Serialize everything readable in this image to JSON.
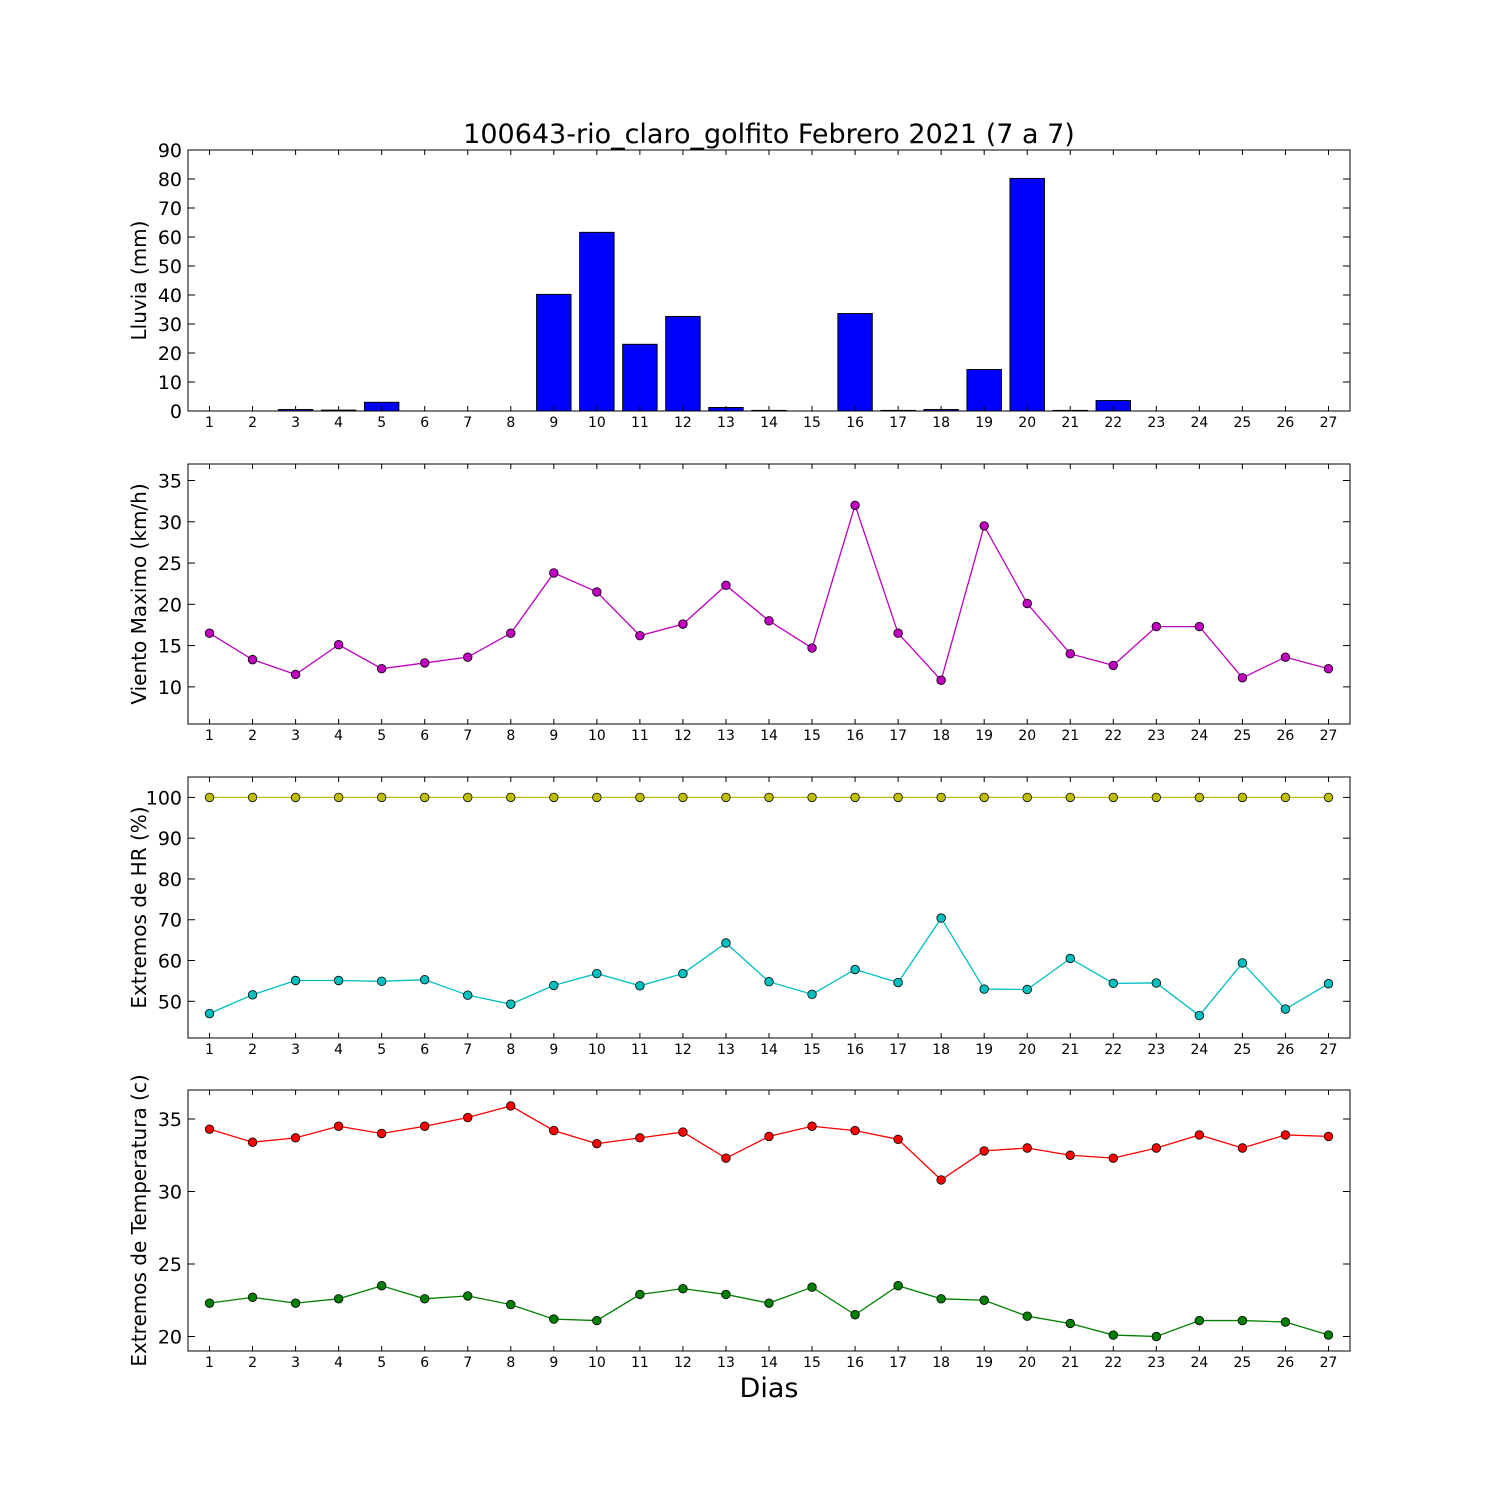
{
  "figure": {
    "title": "100643-rio_claro_golfito Febrero 2021  (7 a 7)",
    "xlabel": "Dias"
  },
  "chart_data": [
    {
      "type": "bar",
      "ylabel": "Lluvia (mm)",
      "x": [
        1,
        2,
        3,
        4,
        5,
        6,
        7,
        8,
        9,
        10,
        11,
        12,
        13,
        14,
        15,
        16,
        17,
        18,
        19,
        20,
        21,
        22,
        23,
        24,
        25,
        26,
        27
      ],
      "xlim": [
        0.5,
        27.5
      ],
      "ylim": [
        0,
        90
      ],
      "yticks": [
        0,
        10,
        20,
        30,
        40,
        50,
        60,
        70,
        80,
        90
      ],
      "series": [
        {
          "color": "#0000ff",
          "values": [
            0,
            0,
            0.5,
            0.3,
            3,
            0,
            0,
            0,
            40.2,
            61.6,
            23,
            32.6,
            1.2,
            0.2,
            0,
            33.6,
            0.2,
            0.5,
            14.3,
            80.2,
            0.2,
            3.6,
            0,
            0,
            0,
            0,
            0
          ]
        }
      ]
    },
    {
      "type": "line",
      "ylabel": "Viento Maximo (km/h)",
      "x": [
        1,
        2,
        3,
        4,
        5,
        6,
        7,
        8,
        9,
        10,
        11,
        12,
        13,
        14,
        15,
        16,
        17,
        18,
        19,
        20,
        21,
        22,
        23,
        24,
        25,
        26,
        27
      ],
      "xlim": [
        0.5,
        27.5
      ],
      "ylim": [
        5.5,
        37
      ],
      "yticks": [
        10,
        15,
        20,
        25,
        30,
        35
      ],
      "series": [
        {
          "color": "#bf00bf",
          "values": [
            16.5,
            13.3,
            11.5,
            15.1,
            12.2,
            12.9,
            13.6,
            16.5,
            23.8,
            21.5,
            16.2,
            17.6,
            22.3,
            18,
            14.7,
            32,
            16.5,
            10.8,
            29.5,
            20.1,
            14,
            12.6,
            17.3,
            17.3,
            11.1,
            13.6,
            12.2
          ]
        }
      ]
    },
    {
      "type": "line",
      "ylabel": "Extremos de HR (%)",
      "x": [
        1,
        2,
        3,
        4,
        5,
        6,
        7,
        8,
        9,
        10,
        11,
        12,
        13,
        14,
        15,
        16,
        17,
        18,
        19,
        20,
        21,
        22,
        23,
        24,
        25,
        26,
        27
      ],
      "xlim": [
        0.5,
        27.5
      ],
      "ylim": [
        41,
        105
      ],
      "yticks": [
        50,
        60,
        70,
        80,
        90,
        100
      ],
      "series": [
        {
          "color": "#bfbf00",
          "values": [
            100,
            100,
            100,
            100,
            100,
            100,
            100,
            100,
            100,
            100,
            100,
            100,
            100,
            100,
            100,
            100,
            100,
            100,
            100,
            100,
            100,
            100,
            100,
            100,
            100,
            100,
            100
          ]
        },
        {
          "color": "#00bfbf",
          "values": [
            47,
            51.6,
            55.1,
            55.1,
            54.9,
            55.3,
            51.5,
            49.3,
            53.9,
            56.8,
            53.8,
            56.8,
            64.3,
            54.8,
            51.7,
            57.8,
            54.6,
            70.4,
            53,
            52.9,
            60.5,
            54.4,
            54.5,
            46.5,
            59.4,
            48.1,
            54.3
          ]
        }
      ]
    },
    {
      "type": "line",
      "ylabel": "Extremos de Temperatura (c)",
      "x": [
        1,
        2,
        3,
        4,
        5,
        6,
        7,
        8,
        9,
        10,
        11,
        12,
        13,
        14,
        15,
        16,
        17,
        18,
        19,
        20,
        21,
        22,
        23,
        24,
        25,
        26,
        27
      ],
      "xlim": [
        0.5,
        27.5
      ],
      "ylim": [
        19,
        37
      ],
      "yticks": [
        20,
        25,
        30,
        35
      ],
      "series": [
        {
          "color": "#ff0000",
          "values": [
            34.3,
            33.4,
            33.7,
            34.5,
            34,
            34.5,
            35.1,
            35.9,
            34.2,
            33.3,
            33.7,
            34.1,
            32.3,
            33.8,
            34.5,
            34.2,
            33.6,
            30.8,
            32.8,
            33,
            32.5,
            32.3,
            33,
            33.9,
            33,
            33.9,
            33.8
          ]
        },
        {
          "color": "#008000",
          "values": [
            22.3,
            22.7,
            22.3,
            22.6,
            23.5,
            22.6,
            22.8,
            22.2,
            21.2,
            21.1,
            22.9,
            23.3,
            22.9,
            22.3,
            23.4,
            21.5,
            23.5,
            22.6,
            22.5,
            21.4,
            20.9,
            20.1,
            20,
            21.1,
            21.1,
            21,
            20.1
          ]
        }
      ]
    }
  ]
}
